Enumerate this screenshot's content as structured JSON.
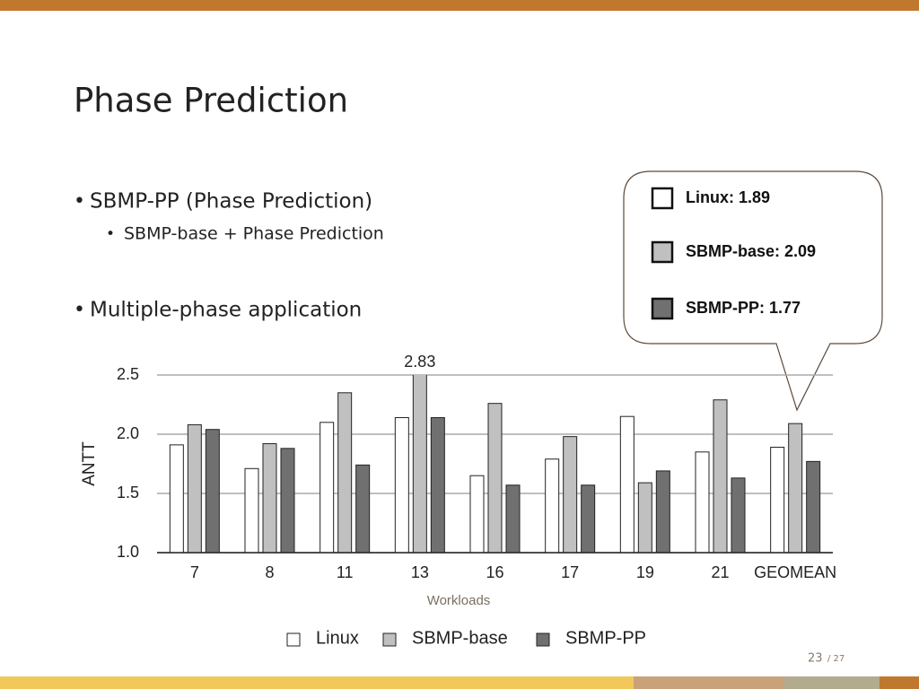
{
  "slide": {
    "title": "Phase Prediction",
    "bullets": [
      "SBMP-PP (Phase Prediction)",
      "Multiple-phase application"
    ],
    "sub_bullet": "SBMP-base + Phase Prediction",
    "callout": [
      "Linux: 1.89",
      "SBMP-base: 2.09",
      "SBMP-PP: 1.77"
    ],
    "page": "23",
    "page_total": "/ 27"
  },
  "chart_data": {
    "type": "bar",
    "categories": [
      "7",
      "8",
      "11",
      "13",
      "16",
      "17",
      "19",
      "21",
      "GEOMEAN"
    ],
    "series": [
      {
        "name": "Linux",
        "color": "#ffffff",
        "values": [
          1.91,
          1.71,
          2.1,
          2.14,
          1.65,
          1.79,
          2.15,
          1.85,
          1.89
        ]
      },
      {
        "name": "SBMP-base",
        "color": "#c0c0c0",
        "values": [
          2.08,
          1.92,
          2.35,
          2.83,
          2.26,
          1.98,
          1.59,
          2.29,
          2.09
        ],
        "value_labels": [
          null,
          null,
          null,
          "2.83",
          null,
          null,
          null,
          null,
          null
        ]
      },
      {
        "name": "SBMP-PP",
        "color": "#707070",
        "values": [
          2.04,
          1.88,
          1.74,
          2.14,
          1.57,
          1.57,
          1.69,
          1.63,
          1.77
        ]
      }
    ],
    "xlabel": "Workloads",
    "ylabel": "ANTT",
    "ylim": [
      1.0,
      2.5
    ],
    "yticks": [
      {
        "value": 1.0,
        "label": "1.0"
      },
      {
        "value": 1.5,
        "label": "1.5"
      },
      {
        "value": 2.0,
        "label": "2.0"
      },
      {
        "value": 2.5,
        "label": "2.5"
      }
    ],
    "grid": true
  }
}
